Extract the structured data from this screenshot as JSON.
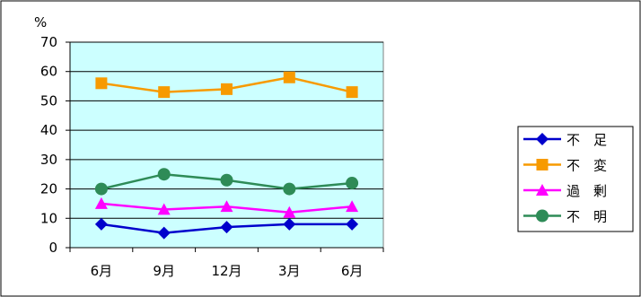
{
  "chart_data": {
    "type": "line",
    "unit_label": "%",
    "categories": [
      "6月",
      "9月",
      "12月",
      "3月",
      "6月"
    ],
    "ylim": [
      0,
      70
    ],
    "yticks": [
      0,
      10,
      20,
      30,
      40,
      50,
      60,
      70
    ],
    "grid": true,
    "legend_position": "right",
    "series": [
      {
        "name": "不　足",
        "values": [
          8,
          5,
          7,
          8,
          8
        ],
        "color": "#0000CC",
        "marker": "diamond"
      },
      {
        "name": "不　変",
        "values": [
          56,
          53,
          54,
          58,
          53
        ],
        "color": "#F79A00",
        "marker": "square"
      },
      {
        "name": "過　剰",
        "values": [
          15,
          13,
          14,
          12,
          14
        ],
        "color": "#FF00FF",
        "marker": "triangle"
      },
      {
        "name": "不　明",
        "values": [
          20,
          25,
          23,
          20,
          22
        ],
        "color": "#2E8B57",
        "marker": "circle"
      }
    ],
    "colors": {
      "plot_background": "#CCFFFF"
    }
  }
}
